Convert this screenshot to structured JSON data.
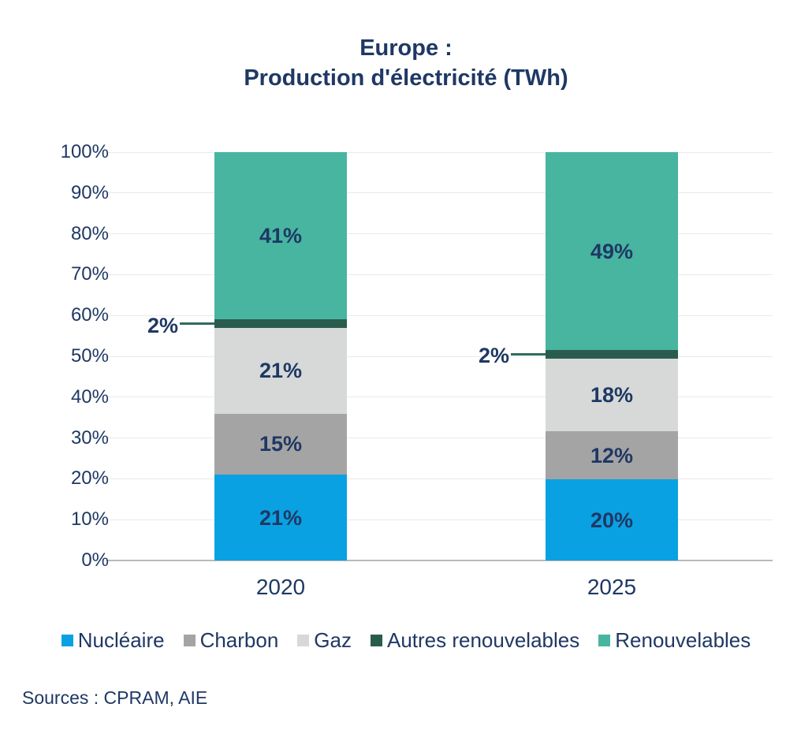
{
  "header": {
    "title_line1": "Europe :",
    "title_line2": "Production d'électricité (TWh)"
  },
  "footer": {
    "sources": "Sources : CPRAM, AIE"
  },
  "colors": {
    "text_navy": "#1F3864",
    "grid_line": "#EAEAEA",
    "axis_line": "#B9B9B9",
    "callout_line": "#2F6B5C"
  },
  "chart_data": {
    "type": "bar",
    "stacked": true,
    "title": "Europe : Production d'électricité (TWh)",
    "categories": [
      "2020",
      "2025"
    ],
    "series": [
      {
        "name": "Nucléaire",
        "color": "#0AA1E2",
        "values": [
          21,
          20
        ],
        "labels": [
          "21%",
          "20%"
        ]
      },
      {
        "name": "Charbon",
        "color": "#A5A4A4",
        "values": [
          15,
          12
        ],
        "labels": [
          "15%",
          "12%"
        ]
      },
      {
        "name": "Gaz",
        "color": "#D6D9D8",
        "values": [
          21,
          18
        ],
        "labels": [
          "21%",
          "18%"
        ]
      },
      {
        "name": "Autres renouvelables",
        "color": "#2A5C4D",
        "values": [
          2,
          2
        ],
        "labels": [
          "2%",
          "2%"
        ]
      },
      {
        "name": "Renouvelables",
        "color": "#47B5A0",
        "values": [
          41,
          49
        ],
        "labels": [
          "41%",
          "49%"
        ]
      }
    ],
    "y_ticks": [
      "0%",
      "10%",
      "20%",
      "30%",
      "40%",
      "50%",
      "60%",
      "70%",
      "80%",
      "90%",
      "100%"
    ],
    "ylim": [
      0,
      100
    ],
    "grid": true,
    "legend_position": "bottom"
  }
}
